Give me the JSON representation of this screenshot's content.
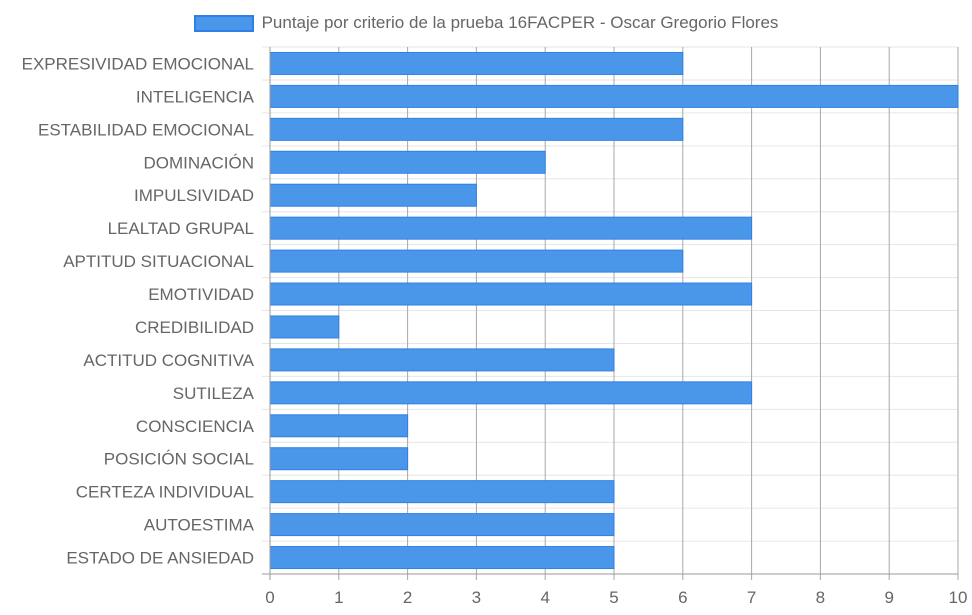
{
  "chart_data": {
    "type": "bar",
    "orientation": "horizontal",
    "legend_position": "top-center",
    "grid": true,
    "series": [
      {
        "name": "Puntaje por criterio de la prueba 16FACPER - Oscar Gregorio Flores",
        "color": "#4a97ea",
        "border_color": "#2f80e6",
        "values": [
          6,
          10,
          6,
          4,
          3,
          7,
          6,
          7,
          1,
          5,
          7,
          2,
          2,
          5,
          5,
          5
        ]
      }
    ],
    "categories": [
      "EXPRESIVIDAD EMOCIONAL",
      "INTELIGENCIA",
      "ESTABILIDAD EMOCIONAL",
      "DOMINACIÓN",
      "IMPULSIVIDAD",
      "LEALTAD GRUPAL",
      "APTITUD SITUACIONAL",
      "EMOTIVIDAD",
      "CREDIBILIDAD",
      "ACTITUD COGNITIVA",
      "SUTILEZA",
      "CONSCIENCIA",
      "POSICIÓN SOCIAL",
      "CERTEZA INDIVIDUAL",
      "AUTOESTIMA",
      "ESTADO DE ANSIEDAD"
    ],
    "xlim": [
      0,
      10
    ],
    "x_ticks": [
      "0",
      "1",
      "2",
      "3",
      "4",
      "5",
      "6",
      "7",
      "8",
      "9",
      "10"
    ]
  }
}
